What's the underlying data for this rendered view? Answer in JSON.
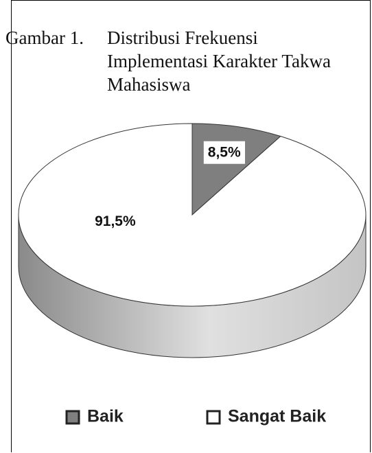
{
  "chart_data": {
    "type": "pie",
    "label": "Gambar 1.",
    "title": "Distribusi Frekuensi Implementasi Karakter Takwa Mahasiswa",
    "categories": [
      "Baik",
      "Sangat Baik"
    ],
    "values": [
      8.5,
      91.5
    ],
    "value_labels": [
      "8,5%",
      "91,5%"
    ],
    "colors": [
      "#7f7f7f",
      "#ffffff"
    ],
    "legend": "bottom"
  }
}
